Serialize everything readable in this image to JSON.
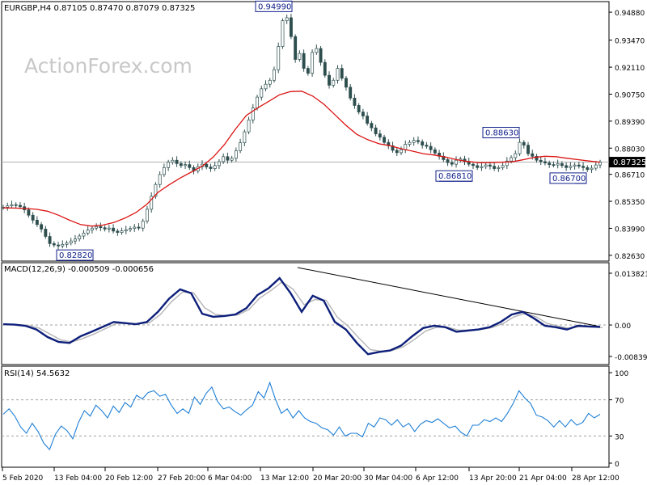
{
  "header": {
    "symbol_line": "EURGBP,H4  0.87105 0.87470 0.87079 0.87325",
    "watermark": "ActionForex.com"
  },
  "colors": {
    "price": "#2f4f4f",
    "ma": "#dc1414",
    "macd": "#0d1f7a",
    "signal": "#b4b4b4",
    "rsi": "#1e7fd6",
    "trendline": "#000000"
  },
  "chart_data": [
    {
      "type": "candlestick",
      "title": "EURGBP,H4",
      "quote": {
        "open": "0.87105",
        "high": "0.87470",
        "low": "0.87079",
        "close": "0.87325"
      },
      "y_ticks": [
        "0.94880",
        "0.93470",
        "0.92110",
        "0.90750",
        "0.89390",
        "0.88030",
        "0.86710",
        "0.85350",
        "0.83990",
        "0.82630"
      ],
      "ylim": [
        0.8246,
        0.9525
      ],
      "current_price_label": "0.87325",
      "annotations": [
        {
          "text": "0.94990",
          "value": 0.9499
        },
        {
          "text": "0.82820",
          "value": 0.8282
        },
        {
          "text": "0.88630",
          "value": 0.8863
        },
        {
          "text": "0.86810",
          "value": 0.8681
        },
        {
          "text": "0.86700",
          "value": 0.867
        }
      ],
      "series": [
        {
          "kind": "price",
          "approx_closes": [
            0.8505,
            0.8512,
            0.8518,
            0.8515,
            0.8508,
            0.8492,
            0.8465,
            0.844,
            0.8418,
            0.8395,
            0.8358,
            0.8322,
            0.8315,
            0.831,
            0.8318,
            0.8325,
            0.8335,
            0.8345,
            0.836,
            0.8375,
            0.839,
            0.84,
            0.8408,
            0.8402,
            0.8395,
            0.84,
            0.8385,
            0.8378,
            0.8386,
            0.8392,
            0.8398,
            0.8405,
            0.84,
            0.8435,
            0.8495,
            0.856,
            0.862,
            0.867,
            0.8705,
            0.8732,
            0.8742,
            0.8725,
            0.8715,
            0.872,
            0.8705,
            0.8688,
            0.871,
            0.8722,
            0.8708,
            0.87,
            0.8715,
            0.8735,
            0.876,
            0.8742,
            0.8752,
            0.879,
            0.883,
            0.8885,
            0.8945,
            0.9005,
            0.906,
            0.9102,
            0.9125,
            0.9145,
            0.9198,
            0.9315,
            0.9445,
            0.946,
            0.9365,
            0.925,
            0.928,
            0.9205,
            0.918,
            0.9285,
            0.9305,
            0.9235,
            0.917,
            0.912,
            0.9145,
            0.9205,
            0.9155,
            0.911,
            0.9055,
            0.9018,
            0.8985,
            0.8965,
            0.8928,
            0.8905,
            0.8875,
            0.8858,
            0.8832,
            0.8815,
            0.8792,
            0.878,
            0.8795,
            0.8822,
            0.8832,
            0.8842,
            0.8835,
            0.8818,
            0.8812,
            0.8795,
            0.8778,
            0.8762,
            0.8745,
            0.873,
            0.8722,
            0.8742,
            0.8748,
            0.8735,
            0.8722,
            0.8715,
            0.8705,
            0.871,
            0.8718,
            0.8712,
            0.87,
            0.8705,
            0.8715,
            0.8738,
            0.8755,
            0.8775,
            0.8832,
            0.8818,
            0.8775,
            0.8762,
            0.8742,
            0.8735,
            0.8728,
            0.872,
            0.8718,
            0.8725,
            0.8715,
            0.8705,
            0.8712,
            0.8718,
            0.8712,
            0.8705,
            0.8695,
            0.8702,
            0.8718,
            0.8732
          ]
        },
        {
          "kind": "moving_average",
          "approx_values": [
            0.8502,
            0.8501,
            0.8499,
            0.8495,
            0.8485,
            0.8465,
            0.844,
            0.8418,
            0.841,
            0.8415,
            0.8428,
            0.845,
            0.8478,
            0.852,
            0.858,
            0.8618,
            0.8652,
            0.8682,
            0.8712,
            0.8758,
            0.882,
            0.8898,
            0.8968,
            0.9005,
            0.9038,
            0.9072,
            0.9088,
            0.909,
            0.9065,
            0.9025,
            0.8972,
            0.8918,
            0.8872,
            0.8845,
            0.8825,
            0.8815,
            0.88,
            0.8788,
            0.8775,
            0.8768,
            0.8758,
            0.8745,
            0.8736,
            0.873,
            0.873,
            0.8732,
            0.8734,
            0.8744,
            0.8756,
            0.8762,
            0.876,
            0.8752,
            0.8745,
            0.8738,
            0.8732
          ]
        }
      ]
    },
    {
      "type": "line",
      "title": "MACD(12,26,9) -0.000509 -0.000656",
      "y_ticks": [
        "0.013821",
        "0.00",
        "-0.008397"
      ],
      "ylim": [
        -0.0097,
        0.0149
      ],
      "series": [
        {
          "kind": "macd",
          "values": [
            0.0002,
            0.0001,
            -0.0002,
            -0.0012,
            -0.0032,
            -0.0045,
            -0.0048,
            -0.003,
            -0.0018,
            -0.0005,
            0.0008,
            0.0005,
            0.0002,
            0.0008,
            0.0035,
            0.007,
            0.0095,
            0.0085,
            0.003,
            0.0022,
            0.0024,
            0.0028,
            0.0045,
            0.008,
            0.0098,
            0.0125,
            0.0085,
            0.0035,
            0.0078,
            0.0065,
            0.0008,
            -0.0012,
            -0.0048,
            -0.0078,
            -0.0072,
            -0.0068,
            -0.0055,
            -0.003,
            -0.0008,
            -0.0002,
            -0.0006,
            -0.0018,
            -0.0015,
            -0.0012,
            -0.0006,
            0.0008,
            0.0028,
            0.0035,
            0.0018,
            -0.0002,
            -0.0006,
            -0.0012,
            -0.0002,
            -0.0004,
            -0.0005
          ]
        },
        {
          "kind": "signal",
          "values": [
            0.0002,
            0.0001,
            -0.0001,
            -0.0008,
            -0.0024,
            -0.004,
            -0.0045,
            -0.0036,
            -0.0024,
            -0.001,
            0.0004,
            0.0004,
            0.0003,
            0.0006,
            0.0028,
            0.0062,
            0.0088,
            0.0086,
            0.0046,
            0.0028,
            0.0025,
            0.0027,
            0.0041,
            0.0072,
            0.0092,
            0.0115,
            0.0096,
            0.0054,
            0.0068,
            0.0066,
            0.0021,
            -0.0004,
            -0.0036,
            -0.0066,
            -0.007,
            -0.0068,
            -0.0058,
            -0.0038,
            -0.0016,
            -0.0006,
            -0.0006,
            -0.0014,
            -0.0014,
            -0.0012,
            -0.0007,
            0.0004,
            0.0022,
            0.0031,
            0.0022,
            0.0004,
            -0.0003,
            -0.0009,
            -0.0004,
            -0.0005,
            -0.0007
          ]
        }
      ]
    },
    {
      "type": "line",
      "title": "RSI(14) 54.5632",
      "y_ticks": [
        "100",
        "70",
        "30",
        "0"
      ],
      "ylim": [
        0,
        100
      ],
      "series": [
        {
          "kind": "rsi",
          "values": [
            54,
            60,
            52,
            40,
            33,
            44,
            35,
            22,
            15,
            32,
            41,
            36,
            27,
            45,
            58,
            52,
            64,
            58,
            50,
            63,
            56,
            67,
            62,
            75,
            71,
            78,
            80,
            74,
            76,
            64,
            55,
            60,
            55,
            73,
            65,
            77,
            84,
            68,
            60,
            62,
            57,
            53,
            59,
            64,
            79,
            72,
            89,
            70,
            55,
            60,
            50,
            58,
            50,
            46,
            44,
            39,
            37,
            31,
            40,
            30,
            33,
            33,
            29,
            44,
            40,
            50,
            48,
            42,
            48,
            40,
            44,
            35,
            43,
            47,
            45,
            49,
            44,
            39,
            41,
            34,
            30,
            42,
            42,
            48,
            46,
            50,
            46,
            55,
            66,
            80,
            72,
            66,
            53,
            51,
            47,
            40,
            47,
            40,
            48,
            42,
            45,
            55,
            50,
            54
          ]
        }
      ]
    }
  ],
  "x_labels": [
    "5 Feb 2020",
    "13 Feb 04:00",
    "20 Feb 12:00",
    "27 Feb 20:00",
    "6 Mar 04:00",
    "13 Mar 12:00",
    "20 Mar 20:00",
    "30 Mar 04:00",
    "6 Apr 12:00",
    "13 Apr 20:00",
    "21 Apr 04:00",
    "28 Apr 12:00"
  ]
}
